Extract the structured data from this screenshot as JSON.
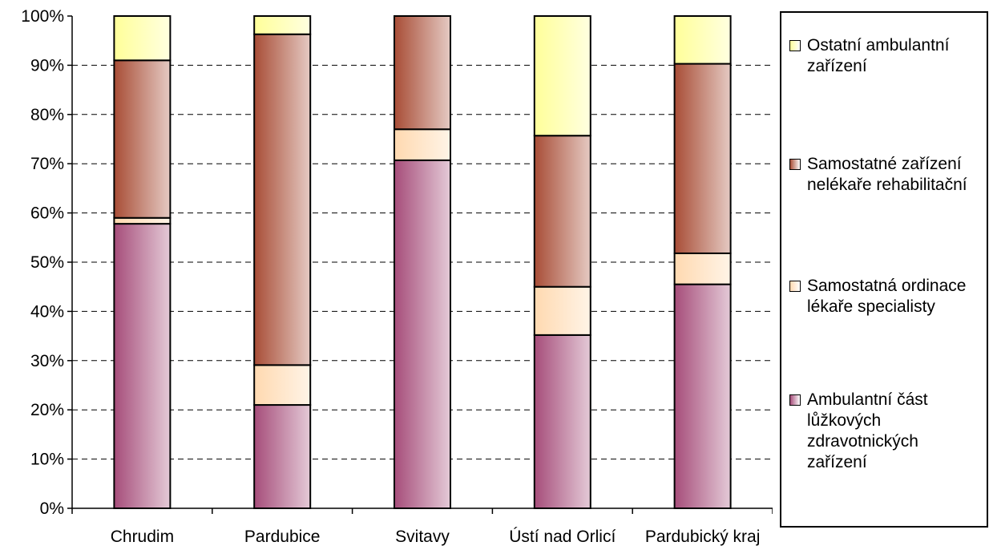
{
  "chart_data": {
    "type": "bar",
    "stacked": true,
    "percent_stacked": true,
    "categories": [
      "Chrudim",
      "Pardubice",
      "Svitavy",
      "Ústí nad Orlicí",
      "Pardubický kraj"
    ],
    "y_ticks": [
      "0%",
      "10%",
      "20%",
      "30%",
      "40%",
      "50%",
      "60%",
      "70%",
      "80%",
      "90%",
      "100%"
    ],
    "ylim": [
      0,
      100
    ],
    "grid": "horizontal dashed",
    "legend_position": "right",
    "series": [
      {
        "name": "Ambulantní část lůžkových zdravotnických zařízení",
        "color": "#a64d7a",
        "values": [
          57.8,
          21.0,
          70.7,
          35.2,
          45.5
        ]
      },
      {
        "name": "Samostatná ordinace lékaře specialisty",
        "color": "#ffd9b0",
        "values": [
          1.2,
          8.1,
          6.3,
          9.8,
          6.3
        ]
      },
      {
        "name": "Samostatné zařízení nelékaře rehabilitační",
        "color": "#a84d36",
        "values": [
          32.0,
          67.2,
          23.0,
          30.7,
          38.5
        ]
      },
      {
        "name": "Ostatní ambulantní zařízení",
        "color": "#ffff99",
        "values": [
          9.0,
          3.7,
          0.0,
          24.3,
          9.7
        ]
      }
    ]
  },
  "legend": {
    "items": [
      {
        "lines": [
          "Ostatní ambulantní",
          "zařízení"
        ],
        "color": "#ffff99"
      },
      {
        "lines": [
          "Samostatné zařízení",
          "nelékaře rehabilitační"
        ],
        "color": "#a84d36"
      },
      {
        "lines": [
          "Samostatná ordinace",
          "lékaře specialisty"
        ],
        "color": "#ffd9b0"
      },
      {
        "lines": [
          "Ambulantní část",
          "lůžkových",
          "zdravotnických",
          "zařízení"
        ],
        "color": "#a64d7a"
      }
    ]
  }
}
